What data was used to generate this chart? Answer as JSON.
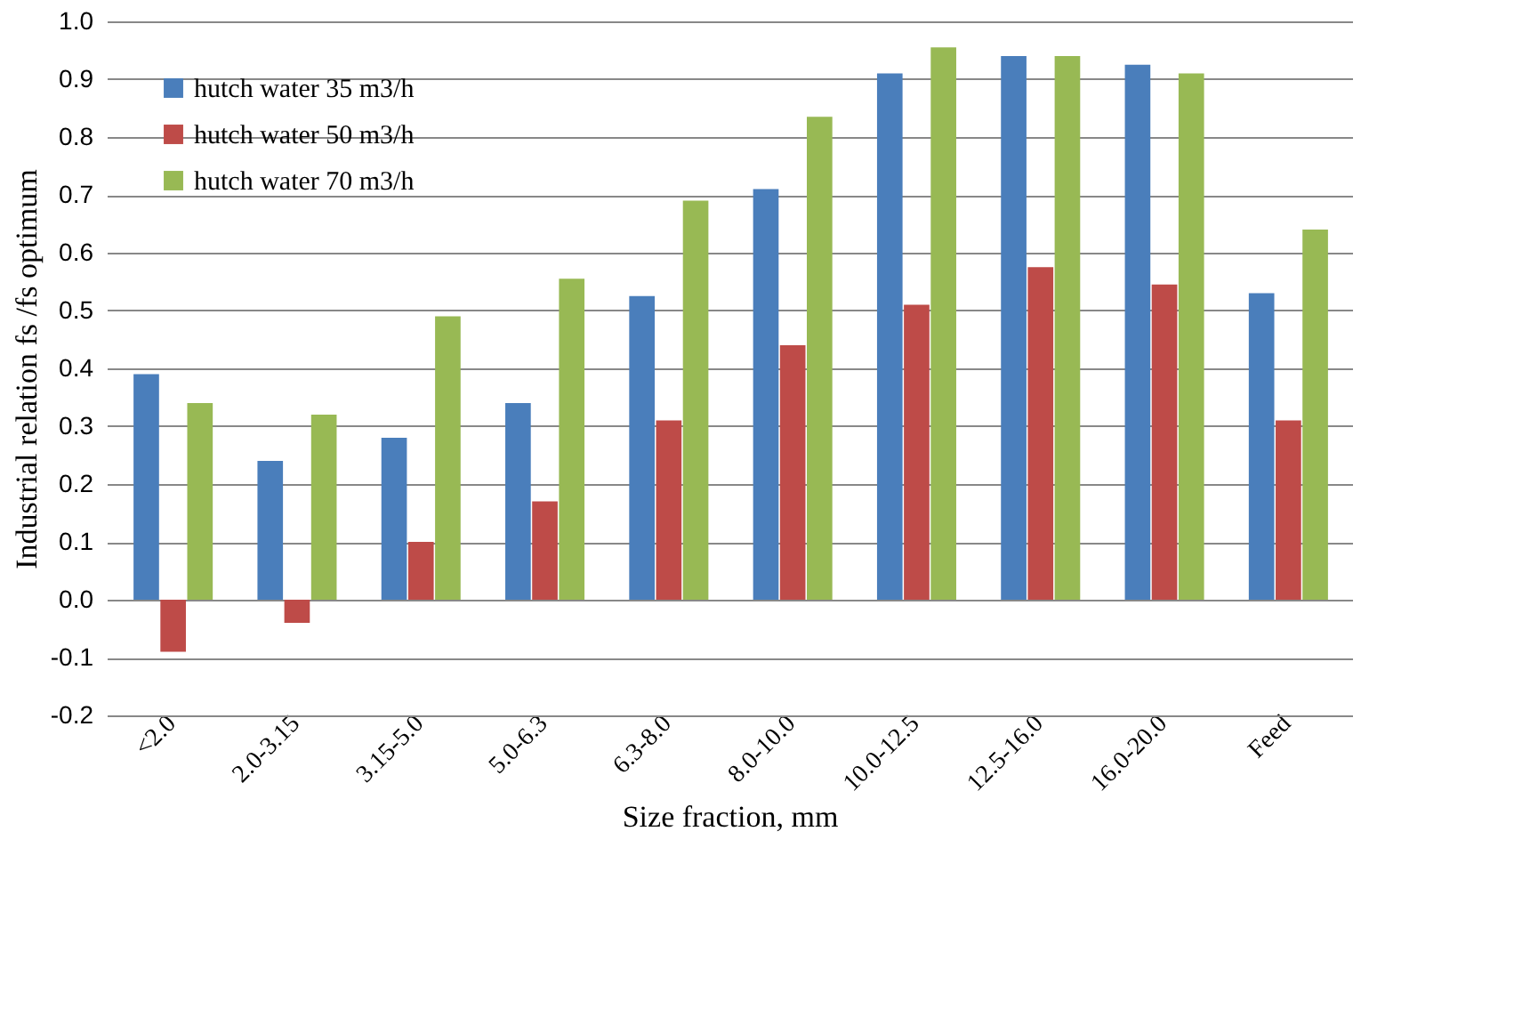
{
  "chart_data": {
    "type": "bar",
    "xlabel": "Size fraction, mm",
    "ylabel": "Industrial relation fs /fs optimum",
    "categories": [
      "<2.0",
      "2.0-3.15",
      "3.15-5.0",
      "5.0-6.3",
      "6.3-8.0",
      "8.0-10.0",
      "10.0-12.5",
      "12.5-16.0",
      "16.0-20.0",
      "Feed"
    ],
    "series": [
      {
        "name": "hutch water 35 m3/h",
        "color": "#4a7ebb",
        "values": [
          0.39,
          0.24,
          0.28,
          0.34,
          0.525,
          0.71,
          0.91,
          0.94,
          0.925,
          0.53
        ]
      },
      {
        "name": "hutch water 50 m3/h",
        "color": "#be4b48",
        "values": [
          -0.09,
          -0.04,
          0.1,
          0.17,
          0.31,
          0.44,
          0.51,
          0.575,
          0.545,
          0.31
        ]
      },
      {
        "name": "hutch water 70 m3/h",
        "color": "#98b954",
        "values": [
          0.34,
          0.32,
          0.49,
          0.555,
          0.69,
          0.835,
          0.955,
          0.94,
          0.91,
          0.64
        ]
      }
    ],
    "ylim": [
      -0.2,
      1.0
    ],
    "yticks": [
      {
        "value": -0.2,
        "label": "-0.2"
      },
      {
        "value": -0.1,
        "label": "-0.1"
      },
      {
        "value": 0,
        "label": "0.0"
      },
      {
        "value": 0.1,
        "label": "0.1"
      },
      {
        "value": 0.2,
        "label": "0.2"
      },
      {
        "value": 0.3,
        "label": "0.3"
      },
      {
        "value": 0.4,
        "label": "0.4"
      },
      {
        "value": 0.5,
        "label": "0.5"
      },
      {
        "value": 0.6,
        "label": "0.6"
      },
      {
        "value": 0.7,
        "label": "0.7"
      },
      {
        "value": 0.8,
        "label": "0.8"
      },
      {
        "value": 0.9,
        "label": "0.9"
      },
      {
        "value": 1.0,
        "label": "1.0"
      }
    ],
    "grid": "y",
    "legend": "top left"
  }
}
